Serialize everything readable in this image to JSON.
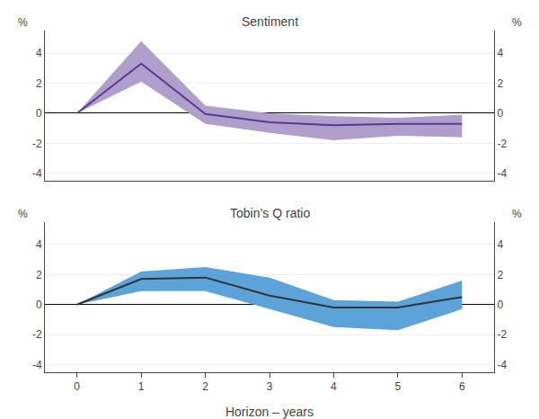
{
  "chart_data": [
    {
      "type": "line",
      "title": "Sentiment",
      "ylabel": "%",
      "y2label": "%",
      "x": [
        0,
        1,
        2,
        3,
        4,
        5,
        6
      ],
      "series": [
        {
          "type": "band",
          "color": "#b09fcc",
          "upper": [
            0.0,
            4.8,
            0.5,
            0.0,
            -0.2,
            -0.3,
            -0.1
          ],
          "lower": [
            0.0,
            2.1,
            -0.7,
            -1.3,
            -1.8,
            -1.5,
            -1.6
          ]
        },
        {
          "type": "line",
          "color": "#5b3a8e",
          "values": [
            0.0,
            3.3,
            -0.05,
            -0.6,
            -0.8,
            -0.7,
            -0.7
          ]
        }
      ],
      "xlim": [
        -0.5,
        6.5
      ],
      "xticks": [
        0,
        1,
        2,
        3,
        4,
        5,
        6
      ],
      "ylim": [
        -4.5,
        5.5
      ],
      "yticks": [
        -4,
        -2,
        0,
        2,
        4
      ],
      "y2lim": [
        -4.5,
        5.5
      ],
      "y2ticks": [
        -4,
        -2,
        0,
        2,
        4
      ],
      "grid": "y",
      "tick_labels": "y"
    },
    {
      "type": "line",
      "title": "Tobin’s Q ratio",
      "xlabel": "Horizon – years",
      "ylabel": "%",
      "y2label": "%",
      "x": [
        0,
        1,
        2,
        3,
        4,
        5,
        6
      ],
      "series": [
        {
          "type": "band",
          "color": "#5ba3d9",
          "upper": [
            0.0,
            2.2,
            2.5,
            1.8,
            0.3,
            0.2,
            1.6
          ],
          "lower": [
            0.0,
            0.9,
            0.9,
            -0.3,
            -1.5,
            -1.7,
            -0.3
          ]
        },
        {
          "type": "line",
          "color": "#333333",
          "values": [
            0.0,
            1.7,
            1.8,
            0.6,
            -0.2,
            -0.2,
            0.5
          ]
        }
      ],
      "xlim": [
        -0.5,
        6.5
      ],
      "xticks": [
        0,
        1,
        2,
        3,
        4,
        5,
        6
      ],
      "ylim": [
        -4.5,
        5.5
      ],
      "yticks": [
        -4,
        -2,
        0,
        2,
        4
      ],
      "y2lim": [
        -4.5,
        5.5
      ],
      "y2ticks": [
        -4,
        -2,
        0,
        2,
        4
      ],
      "grid": "y"
    }
  ]
}
